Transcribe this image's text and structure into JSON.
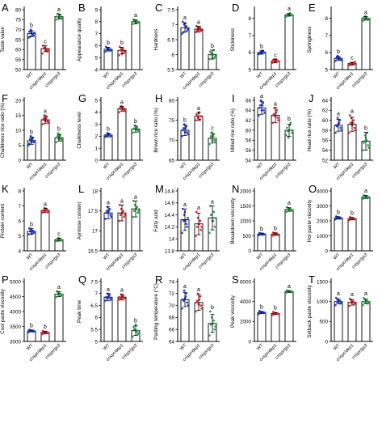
{
  "figure": {
    "groups": [
      "WT",
      "crispr/dep1",
      "crispr/gs3"
    ],
    "colors": [
      "#1f3fe0",
      "#e3262b",
      "#2aa54a"
    ]
  },
  "chart_data": [
    {
      "type": "bar",
      "letter": "A",
      "ylabel": "Taste value",
      "ylim": [
        50,
        80
      ],
      "ticks": [
        50,
        55,
        60,
        65,
        70,
        75,
        80
      ],
      "values": [
        68,
        60.5,
        76.5
      ],
      "errors": [
        1.5,
        1.5,
        1.2
      ],
      "sig": [
        "b",
        "c",
        "a"
      ],
      "points": [
        [
          66,
          67,
          68,
          70,
          69,
          68.5,
          67.5,
          68.8,
          66.5
        ],
        [
          58,
          59,
          60,
          61,
          62,
          60,
          59.5,
          61,
          60.5
        ],
        [
          75,
          76,
          77,
          78,
          76.5,
          75.5,
          77.5,
          76,
          78
        ]
      ]
    },
    {
      "type": "bar",
      "letter": "B",
      "ylabel": "Appearance quality",
      "ylim": [
        4,
        9
      ],
      "ticks": [
        4,
        5,
        6,
        7,
        8,
        9
      ],
      "values": [
        5.7,
        5.6,
        8
      ],
      "errors": [
        0.15,
        0.25,
        0.15
      ],
      "sig": [
        "b",
        "b",
        "a"
      ],
      "points": [
        [
          5.5,
          5.6,
          5.7,
          5.8,
          5.9,
          5.6,
          5.7,
          5.8,
          5.65
        ],
        [
          5.2,
          5.4,
          5.6,
          5.8,
          5.9,
          5.5,
          5.7,
          5.3,
          5.6
        ],
        [
          7.8,
          7.9,
          8,
          8.1,
          8.2,
          7.95,
          8.05,
          7.85,
          8.1
        ]
      ]
    },
    {
      "type": "bar",
      "letter": "C",
      "ylabel": "Hardness",
      "ylim": [
        5.5,
        7.5
      ],
      "ticks": [
        5.5,
        6,
        6.5,
        7,
        7.5
      ],
      "values": [
        6.9,
        6.85,
        6
      ],
      "errors": [
        0.15,
        0.1,
        0.15
      ],
      "sig": [
        "a",
        "a",
        "b"
      ],
      "points": [
        [
          6.7,
          6.8,
          6.9,
          7,
          7.1,
          6.85,
          6.95,
          7.05,
          6.75
        ],
        [
          6.75,
          6.8,
          6.85,
          6.9,
          6.95,
          6.8,
          6.9,
          6.85,
          6.8
        ],
        [
          5.85,
          5.9,
          6,
          6.05,
          6.1,
          5.95,
          6.15,
          5.9,
          6
        ]
      ]
    },
    {
      "type": "bar",
      "letter": "D",
      "ylabel": "Stickiness",
      "ylim": [
        5,
        8.5
      ],
      "ticks": [
        5,
        6,
        7,
        8
      ],
      "values": [
        6,
        5.5,
        8.2
      ],
      "errors": [
        0.1,
        0.1,
        0.07
      ],
      "sig": [
        "b",
        "c",
        "a"
      ],
      "points": [
        [
          5.9,
          6,
          6.1,
          6.05,
          5.95,
          6,
          6.1,
          5.95,
          6
        ],
        [
          5.4,
          5.5,
          5.6,
          5.45,
          5.55,
          5.5,
          5.5,
          5.45,
          5.6
        ],
        [
          8.1,
          8.2,
          8.3,
          8.25,
          8.15,
          8.2,
          8.2,
          8.15,
          8.25
        ]
      ]
    },
    {
      "type": "bar",
      "letter": "E",
      "ylabel": "Springiness",
      "ylim": [
        5,
        8.5
      ],
      "ticks": [
        5,
        6,
        7,
        8
      ],
      "values": [
        5.65,
        5.35,
        8
      ],
      "errors": [
        0.1,
        0.07,
        0.1
      ],
      "sig": [
        "b",
        "c",
        "a"
      ],
      "points": [
        [
          5.5,
          5.6,
          5.7,
          5.8,
          5.65,
          5.55,
          5.7,
          5.6,
          5.75
        ],
        [
          5.25,
          5.3,
          5.4,
          5.35,
          5.3,
          5.45,
          5.35,
          5.3,
          5.4
        ],
        [
          7.85,
          7.9,
          8,
          8.1,
          8.05,
          7.95,
          8,
          8.1,
          7.9
        ]
      ]
    },
    {
      "type": "bar",
      "letter": "F",
      "ylabel": "Chalkiness rice ratio (%)",
      "ylim": [
        0,
        20
      ],
      "ticks": [
        0,
        5,
        10,
        15,
        20
      ],
      "values": [
        6.5,
        13.5,
        7.5
      ],
      "errors": [
        1.2,
        1.3,
        1.1
      ],
      "sig": [
        "b",
        "a",
        "b"
      ],
      "points": [
        [
          5,
          6,
          7,
          8,
          5.5,
          6.5,
          7.5,
          6,
          7
        ],
        [
          12,
          13,
          14,
          15,
          13.5,
          12.5,
          14.5,
          13,
          14
        ],
        [
          6,
          7,
          8,
          9,
          7.5,
          6.5,
          8.5,
          7,
          8
        ]
      ]
    },
    {
      "type": "bar",
      "letter": "G",
      "ylabel": "Chalkiness level",
      "ylim": [
        0,
        5
      ],
      "ticks": [
        0,
        1,
        2,
        3,
        4,
        5
      ],
      "values": [
        2.1,
        4.3,
        2.6
      ],
      "errors": [
        0.15,
        0.2,
        0.25
      ],
      "sig": [
        "b",
        "a",
        "b"
      ],
      "points": [
        [
          1.95,
          2.05,
          2.15,
          2.25,
          2.1,
          2,
          2.2,
          2.1,
          2.05
        ],
        [
          4,
          4.2,
          4.4,
          4.5,
          4.3,
          4.1,
          4.35,
          4.25,
          4.45
        ],
        [
          2.3,
          2.5,
          2.7,
          2.9,
          2.6,
          2.4,
          2.75,
          2.55,
          2.65
        ]
      ]
    },
    {
      "type": "bar",
      "letter": "H",
      "ylabel": "Brown rice ratio (%)",
      "ylim": [
        65,
        80
      ],
      "ticks": [
        65,
        70,
        75,
        80
      ],
      "values": [
        72.5,
        76,
        70.5
      ],
      "errors": [
        1.3,
        1,
        1.2
      ],
      "sig": [
        "b",
        "a",
        "c"
      ],
      "points": [
        [
          71,
          72,
          73,
          74,
          72.5,
          71.5,
          73.5,
          72,
          73
        ],
        [
          75,
          76,
          77,
          75.5,
          76.5,
          76,
          75.2,
          76.8,
          76
        ],
        [
          69,
          70,
          71,
          72,
          70.5,
          69.5,
          71.5,
          70,
          71
        ]
      ]
    },
    {
      "type": "bar",
      "letter": "I",
      "ylabel": "Milled rice ratio (%)",
      "ylim": [
        54,
        66
      ],
      "ticks": [
        54,
        56,
        58,
        60,
        62,
        64,
        66
      ],
      "values": [
        64.5,
        63,
        60
      ],
      "errors": [
        1.3,
        1.5,
        1.2
      ],
      "sig": [
        "a",
        "a",
        "b"
      ],
      "points": [
        [
          63,
          64,
          65,
          66,
          64.5,
          63.5,
          65.5,
          64,
          65
        ],
        [
          61.5,
          62.5,
          63.5,
          64.5,
          63,
          62,
          64,
          62.8,
          63.2
        ],
        [
          59,
          60,
          61,
          58.5,
          60.5,
          59.5,
          61.5,
          60,
          59.8
        ]
      ]
    },
    {
      "type": "bar",
      "letter": "J",
      "ylabel": "Head rice ratio (%)",
      "ylim": [
        52,
        64
      ],
      "ticks": [
        52,
        54,
        56,
        58,
        60,
        62,
        64
      ],
      "values": [
        59,
        59.2,
        55.8
      ],
      "errors": [
        1.2,
        1.4,
        1.8
      ],
      "sig": [
        "a",
        "a",
        "b"
      ],
      "points": [
        [
          57.5,
          58.5,
          59.5,
          60.5,
          59,
          58,
          60,
          59.2,
          58.8
        ],
        [
          57.5,
          58.5,
          59.5,
          60.5,
          61,
          58,
          60,
          59,
          59.5
        ],
        [
          54,
          55,
          56,
          57,
          55.5,
          54.5,
          57.5,
          56.5,
          55.8
        ]
      ]
    },
    {
      "type": "bar",
      "letter": "K",
      "ylabel": "Protein content",
      "ylim": [
        4,
        8
      ],
      "ticks": [
        4,
        5,
        6,
        7,
        8
      ],
      "values": [
        5.3,
        6.7,
        4.75
      ],
      "errors": [
        0.2,
        0.15,
        0.1
      ],
      "sig": [
        "b",
        "a",
        "c"
      ],
      "points": [
        [
          5.1,
          5.2,
          5.3,
          5.4,
          5.5,
          5.25,
          5.35,
          5.15,
          5.3
        ],
        [
          6.55,
          6.65,
          6.75,
          6.85,
          6.7,
          6.6,
          6.8,
          6.7,
          6.65
        ],
        [
          4.65,
          4.7,
          4.8,
          4.85,
          4.75,
          4.7,
          4.8,
          4.75,
          4.7
        ]
      ]
    },
    {
      "type": "bar",
      "letter": "L",
      "ylabel": "Aymlose content",
      "ylim": [
        16.5,
        18
      ],
      "ticks": [
        16.5,
        17,
        17.5,
        18
      ],
      "values": [
        17.45,
        17.45,
        17.55
      ],
      "errors": [
        0.15,
        0.2,
        0.2
      ],
      "sig": [
        "a",
        "a",
        "a"
      ],
      "points": [
        [
          17.3,
          17.4,
          17.5,
          17.6,
          17.45,
          17.35,
          17.55,
          17.45,
          17.5
        ],
        [
          17.25,
          17.35,
          17.45,
          17.55,
          17.65,
          17.4,
          17.5,
          17.45,
          17.4
        ],
        [
          17.35,
          17.45,
          17.55,
          17.65,
          17.75,
          17.5,
          17.6,
          17.55,
          17.5
        ]
      ]
    },
    {
      "type": "bar",
      "letter": "M",
      "ylabel": "Fatty acid",
      "ylim": [
        13.8,
        14.8
      ],
      "ticks": [
        13.8,
        14,
        14.2,
        14.4,
        14.6,
        14.8
      ],
      "values": [
        14.32,
        14.25,
        14.35
      ],
      "errors": [
        0.18,
        0.18,
        0.2
      ],
      "sig": [
        "a",
        "a",
        "a"
      ],
      "points": [
        [
          14.1,
          14.2,
          14.3,
          14.4,
          14.5,
          14.35,
          14.25,
          14.45,
          14.3
        ],
        [
          14.05,
          14.15,
          14.25,
          14.35,
          14.45,
          14.2,
          14.3,
          14.25,
          14.2
        ],
        [
          14.1,
          14.2,
          14.3,
          14.4,
          14.55,
          14.35,
          14.45,
          14.3,
          14.4
        ]
      ]
    },
    {
      "type": "bar",
      "letter": "N",
      "ylabel": "Breakdown viscosity",
      "ylim": [
        0,
        2000
      ],
      "ticks": [
        0,
        500,
        1000,
        1500,
        2000
      ],
      "values": [
        560,
        560,
        1380
      ],
      "errors": [
        30,
        40,
        60
      ],
      "sig": [
        "b",
        "b",
        "a"
      ],
      "points": [
        [
          520,
          540,
          560,
          580,
          600,
          550,
          570,
          555,
          565
        ],
        [
          510,
          530,
          560,
          590,
          610,
          540,
          575,
          555,
          565
        ],
        [
          1300,
          1340,
          1380,
          1420,
          1460,
          1360,
          1400,
          1390,
          1370
        ]
      ]
    },
    {
      "type": "bar",
      "letter": "O",
      "ylabel": "Hot paste viscosity",
      "ylim": [
        0,
        4000
      ],
      "ticks": [
        0,
        1000,
        2000,
        3000,
        4000
      ],
      "values": [
        2200,
        2150,
        3600
      ],
      "errors": [
        80,
        80,
        100
      ],
      "sig": [
        "b",
        "b",
        "a"
      ],
      "points": [
        [
          2100,
          2150,
          2200,
          2250,
          2300,
          2180,
          2220,
          2210,
          2190
        ],
        [
          2050,
          2100,
          2150,
          2200,
          2250,
          2130,
          2170,
          2160,
          2140
        ],
        [
          3480,
          3540,
          3600,
          3660,
          3720,
          3580,
          3620,
          3610,
          3590
        ]
      ]
    },
    {
      "type": "bar",
      "letter": "P",
      "ylabel": "Cool paste viscosity",
      "ylim": [
        3000,
        5000
      ],
      "ticks": [
        3000,
        3500,
        4000,
        4500,
        5000
      ],
      "values": [
        3350,
        3300,
        4580
      ],
      "errors": [
        30,
        40,
        80
      ],
      "sig": [
        "b",
        "b",
        "a"
      ],
      "points": [
        [
          3310,
          3330,
          3350,
          3370,
          3390,
          3340,
          3360,
          3355,
          3345
        ],
        [
          3250,
          3280,
          3300,
          3320,
          3350,
          3290,
          3310,
          3305,
          3295
        ],
        [
          4480,
          4530,
          4580,
          4630,
          4680,
          4560,
          4600,
          4590,
          4570
        ]
      ]
    },
    {
      "type": "bar",
      "letter": "Q",
      "ylabel": "Peak time",
      "ylim": [
        5,
        7.5
      ],
      "ticks": [
        5,
        5.5,
        6,
        6.5,
        7,
        7.5
      ],
      "values": [
        6.85,
        6.85,
        5.45
      ],
      "errors": [
        0.15,
        0.12,
        0.2
      ],
      "sig": [
        "a",
        "a",
        "b"
      ],
      "points": [
        [
          6.7,
          6.8,
          6.9,
          7,
          6.85,
          6.75,
          6.95,
          6.85,
          6.8
        ],
        [
          6.75,
          6.8,
          6.9,
          6.95,
          6.85,
          6.8,
          6.9,
          6.85,
          6.8
        ],
        [
          5.2,
          5.3,
          5.4,
          5.5,
          5.6,
          5.35,
          5.45,
          5.7,
          5.5
        ]
      ]
    },
    {
      "type": "bar",
      "letter": "R",
      "ylabel": "Pasting temperature (°C)",
      "ylim": [
        64,
        74
      ],
      "ticks": [
        64,
        66,
        68,
        70,
        72,
        74
      ],
      "values": [
        71,
        70.5,
        67
      ],
      "errors": [
        1.2,
        1.3,
        1.5
      ],
      "sig": [
        "a",
        "a",
        "b"
      ],
      "points": [
        [
          69.5,
          70.5,
          71.5,
          72.5,
          71,
          70,
          72,
          71.2,
          70.8
        ],
        [
          69,
          70,
          71,
          72,
          70.5,
          69.5,
          71.5,
          70.2,
          70.8
        ],
        [
          65,
          66,
          67,
          68,
          69,
          66.5,
          67.5,
          67,
          66.8
        ]
      ]
    },
    {
      "type": "bar",
      "letter": "S",
      "ylabel": "Peak viscosity",
      "ylim": [
        0,
        6000
      ],
      "ticks": [
        0,
        2000,
        4000,
        6000
      ],
      "values": [
        2900,
        2800,
        5000
      ],
      "errors": [
        100,
        100,
        80
      ],
      "sig": [
        "b",
        "b",
        "a"
      ],
      "points": [
        [
          2750,
          2850,
          2900,
          2950,
          3050,
          2880,
          2920,
          2910,
          2890
        ],
        [
          2650,
          2750,
          2800,
          2850,
          2950,
          2780,
          2820,
          2810,
          2790
        ],
        [
          4880,
          4940,
          5000,
          5060,
          5120,
          4980,
          5020,
          5010,
          4990
        ]
      ]
    },
    {
      "type": "bar",
      "letter": "T",
      "ylabel": "Setback paste viscosity",
      "ylim": [
        0,
        1500
      ],
      "ticks": [
        0,
        500,
        1000,
        1500
      ],
      "values": [
        1000,
        980,
        1000
      ],
      "errors": [
        60,
        70,
        60
      ],
      "sig": [
        "a",
        "a",
        "a"
      ],
      "points": [
        [
          910,
          950,
          1000,
          1050,
          1090,
          980,
          1020,
          1010,
          990
        ],
        [
          890,
          930,
          980,
          1030,
          1070,
          960,
          1000,
          990,
          970
        ],
        [
          910,
          950,
          1000,
          1050,
          1090,
          980,
          1020,
          1010,
          990
        ]
      ]
    }
  ]
}
